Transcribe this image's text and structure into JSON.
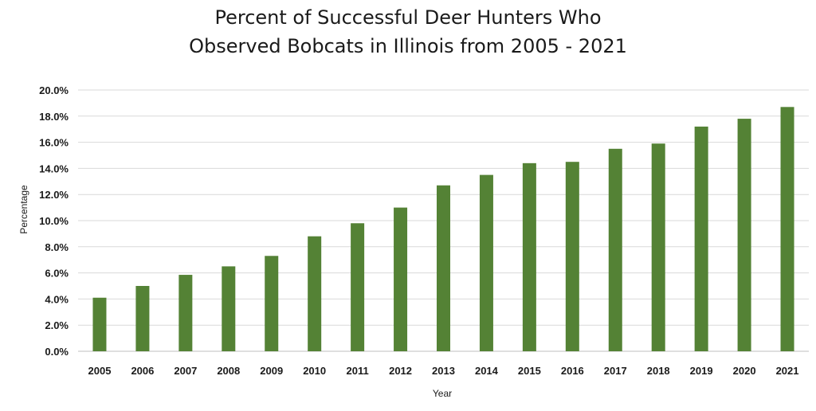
{
  "chart_data": {
    "type": "bar",
    "title_lines": [
      "Percent of Successful Deer Hunters Who",
      "Observed Bobcats in Illinois from 2005 - 2021"
    ],
    "xlabel": "Year",
    "ylabel": "Percentage",
    "categories": [
      "2005",
      "2006",
      "2007",
      "2008",
      "2009",
      "2010",
      "2011",
      "2012",
      "2013",
      "2014",
      "2015",
      "2016",
      "2017",
      "2018",
      "2019",
      "2020",
      "2021"
    ],
    "values": [
      4.1,
      5.0,
      5.85,
      6.5,
      7.3,
      8.8,
      9.8,
      11.0,
      12.7,
      13.5,
      14.4,
      14.5,
      15.5,
      15.9,
      17.2,
      17.8,
      18.7
    ],
    "ylim": [
      0,
      20
    ],
    "yticks": [
      "0.0%",
      "2.0%",
      "4.0%",
      "6.0%",
      "8.0%",
      "10.0%",
      "12.0%",
      "14.0%",
      "16.0%",
      "18.0%",
      "20.0%"
    ],
    "grid": true,
    "legend": "none",
    "bar_color": "#548235",
    "grid_color": "#d9d9d9"
  }
}
